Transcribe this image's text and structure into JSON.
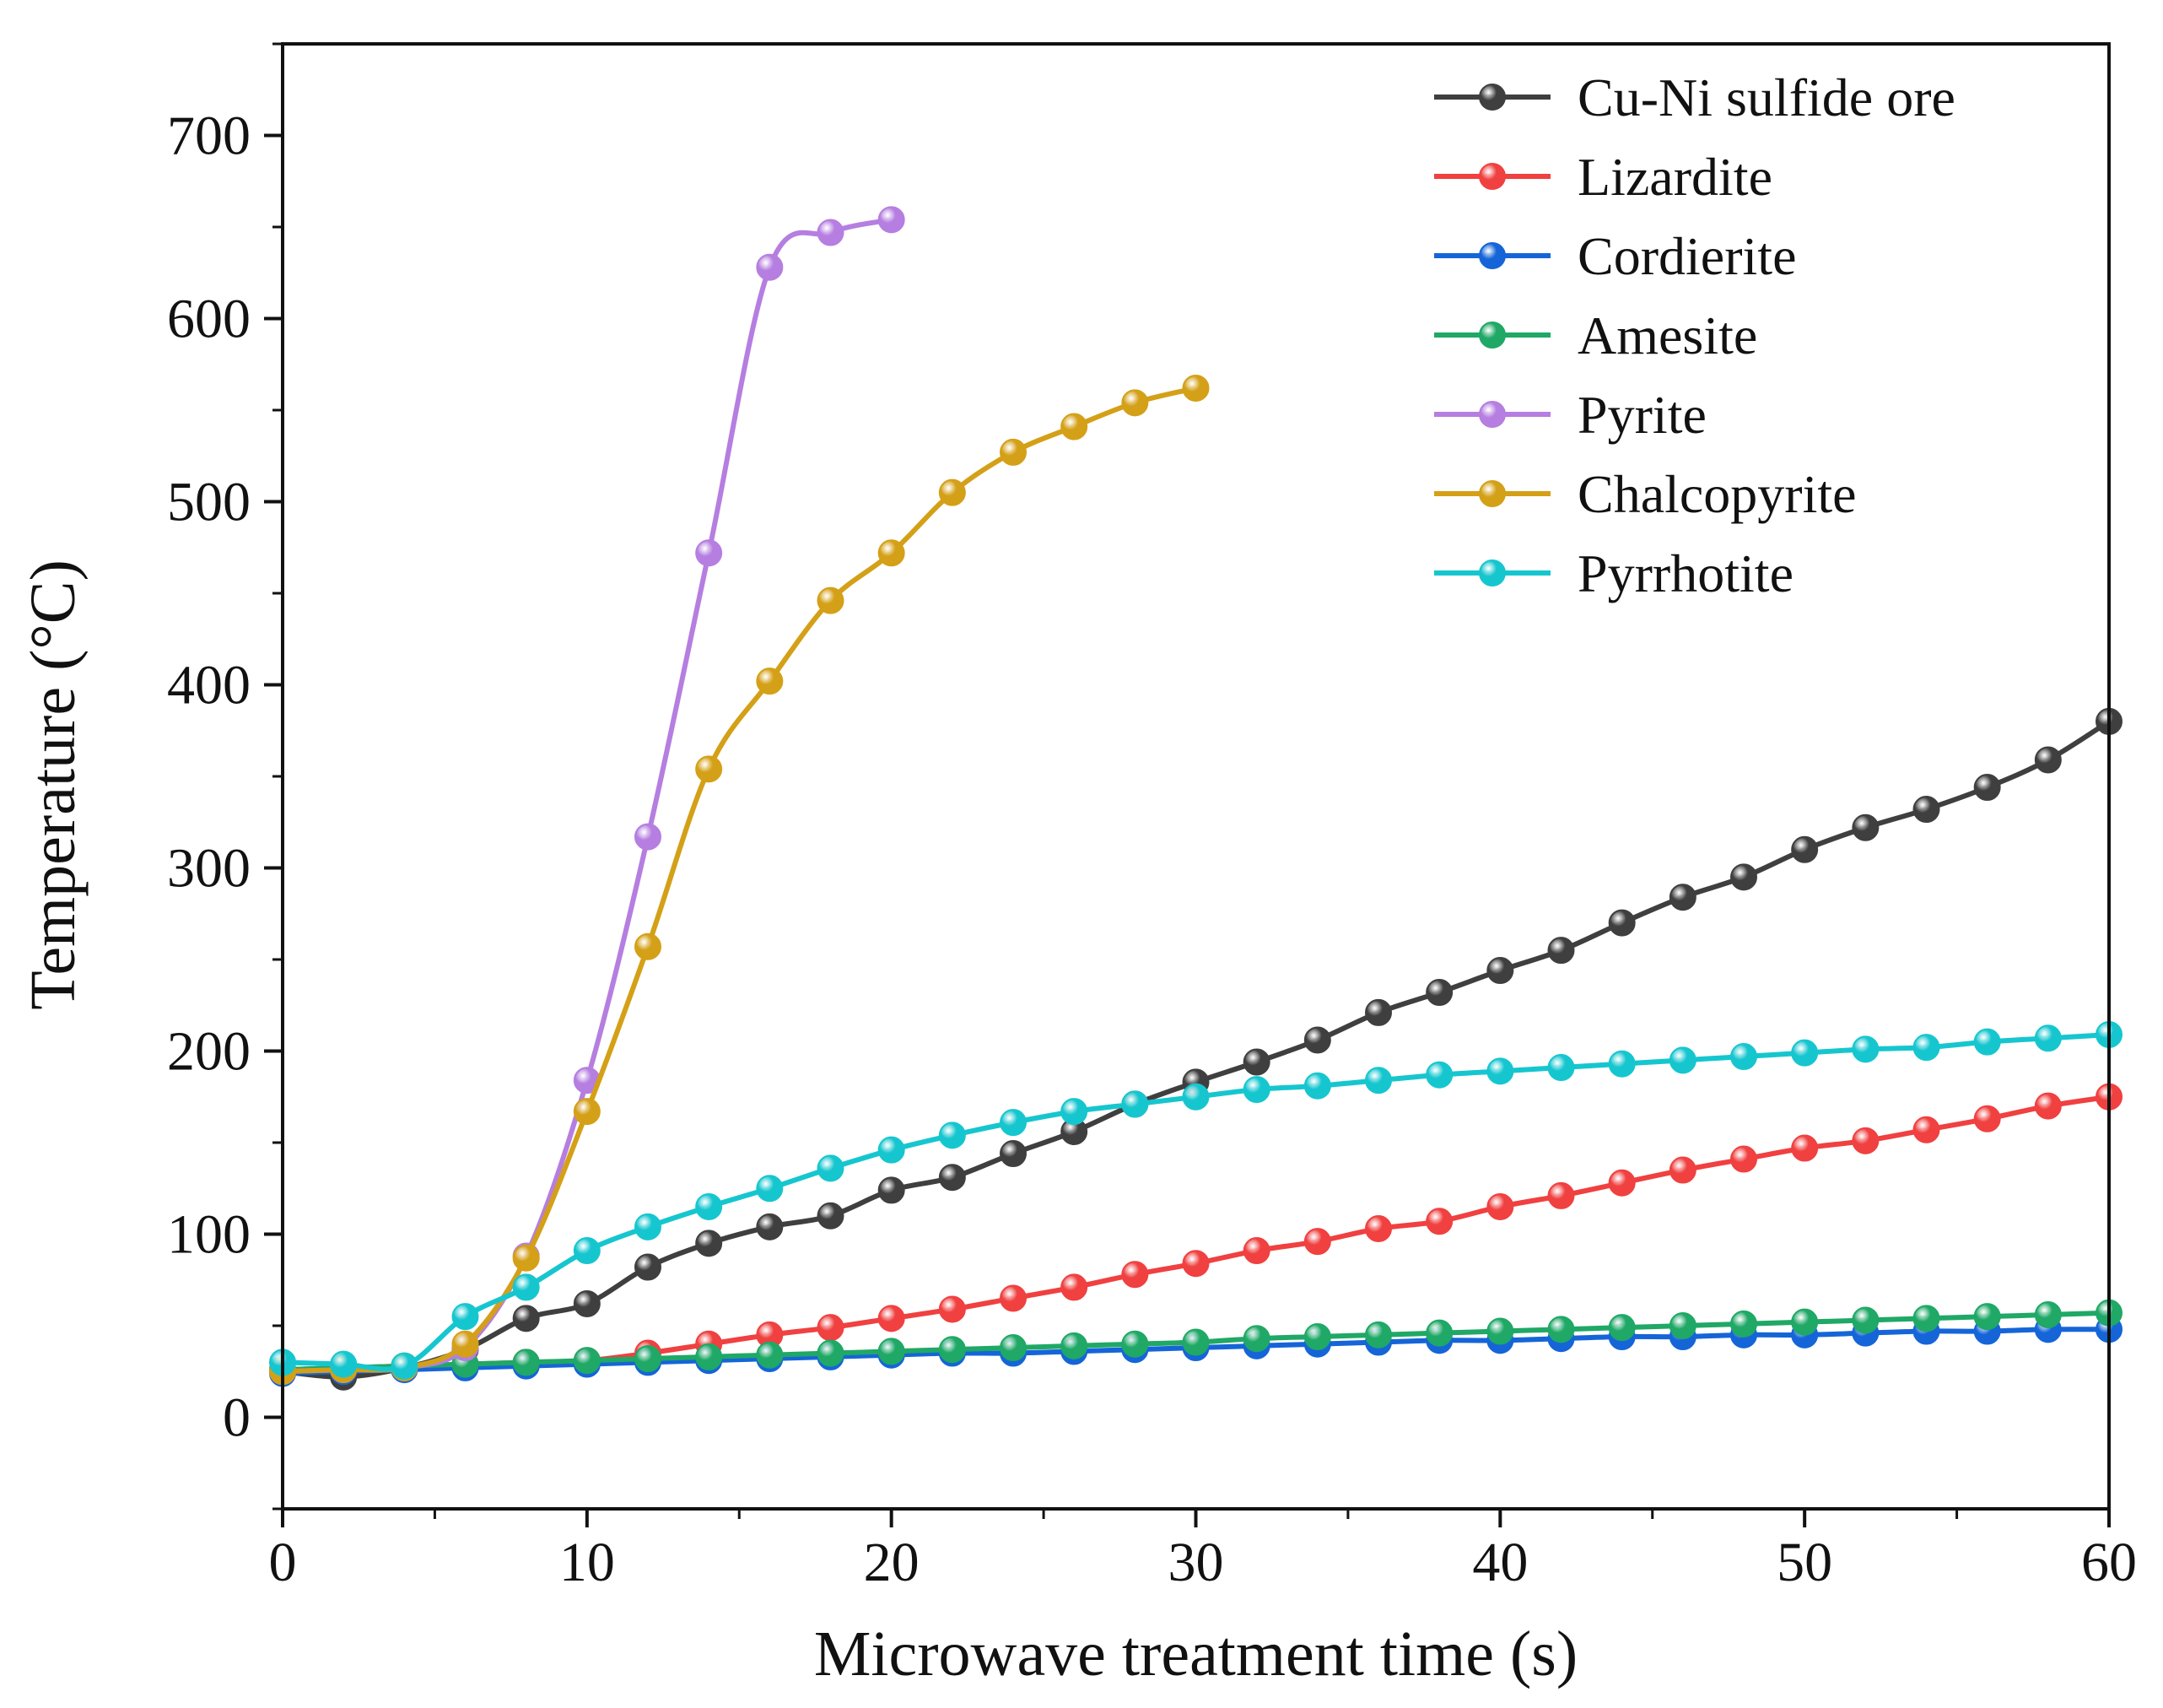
{
  "chart_data": {
    "type": "line",
    "title": "",
    "xlabel": "Microwave treatment time (s)",
    "ylabel": "Temperature (°C)",
    "xlim": [
      0,
      60
    ],
    "ylim": [
      -50,
      750
    ],
    "xticks": [
      0,
      10,
      20,
      30,
      40,
      50,
      60
    ],
    "yticks": [
      0,
      100,
      200,
      300,
      400,
      500,
      600,
      700
    ],
    "legend_position": "top-right",
    "series": [
      {
        "name": "Cu-Ni sulfide ore",
        "color": "#3f3f3f",
        "x": [
          0,
          2,
          4,
          6,
          8,
          10,
          12,
          14,
          16,
          18,
          20,
          22,
          24,
          26,
          28,
          30,
          32,
          34,
          36,
          38,
          40,
          42,
          44,
          46,
          48,
          50,
          52,
          54,
          56,
          58,
          60
        ],
        "y": [
          25,
          22,
          27,
          37,
          54,
          62,
          82,
          95,
          104,
          110,
          124,
          131,
          144,
          156,
          171,
          183,
          194,
          206,
          221,
          232,
          244,
          255,
          270,
          284,
          295,
          310,
          322,
          332,
          344,
          359,
          380
        ]
      },
      {
        "name": "Lizardite",
        "color": "#f04040",
        "x": [
          0,
          2,
          4,
          6,
          8,
          10,
          12,
          14,
          16,
          18,
          20,
          22,
          24,
          26,
          28,
          30,
          32,
          34,
          36,
          38,
          40,
          42,
          44,
          46,
          48,
          50,
          52,
          54,
          56,
          58,
          60
        ],
        "y": [
          26,
          27,
          28,
          29,
          30,
          31,
          35,
          40,
          45,
          49,
          54,
          59,
          65,
          71,
          78,
          84,
          91,
          96,
          103,
          107,
          115,
          121,
          128,
          135,
          141,
          147,
          151,
          157,
          163,
          170,
          175
        ]
      },
      {
        "name": "Cordierite",
        "color": "#1565d8",
        "x": [
          0,
          2,
          4,
          6,
          8,
          10,
          12,
          14,
          16,
          18,
          20,
          22,
          24,
          26,
          28,
          30,
          32,
          34,
          36,
          38,
          40,
          42,
          44,
          46,
          48,
          50,
          52,
          54,
          56,
          58,
          60
        ],
        "y": [
          24,
          25,
          26,
          27,
          28,
          29,
          30,
          31,
          32,
          33,
          34,
          35,
          35,
          36,
          37,
          38,
          39,
          40,
          41,
          42,
          42,
          43,
          44,
          44,
          45,
          45,
          46,
          47,
          47,
          48,
          48
        ]
      },
      {
        "name": "Amesite",
        "color": "#1fa866",
        "x": [
          0,
          2,
          4,
          6,
          8,
          10,
          12,
          14,
          16,
          18,
          20,
          22,
          24,
          26,
          28,
          30,
          32,
          34,
          36,
          38,
          40,
          42,
          44,
          46,
          48,
          50,
          52,
          54,
          56,
          58,
          60
        ],
        "y": [
          26,
          27,
          28,
          29,
          30,
          31,
          32,
          33,
          34,
          35,
          36,
          37,
          38,
          39,
          40,
          41,
          43,
          44,
          45,
          46,
          47,
          48,
          49,
          50,
          51,
          52,
          53,
          54,
          55,
          56,
          57
        ]
      },
      {
        "name": "Pyrite",
        "color": "#b57ee0",
        "x": [
          0,
          2,
          4,
          6,
          8,
          10,
          12,
          14,
          16,
          18,
          20
        ],
        "y": [
          25,
          26,
          27,
          38,
          88,
          184,
          317,
          472,
          628,
          647,
          654
        ]
      },
      {
        "name": "Chalcopyrite",
        "color": "#d4a017",
        "x": [
          0,
          2,
          4,
          6,
          8,
          10,
          12,
          14,
          16,
          18,
          20,
          22,
          24,
          26,
          28,
          30
        ],
        "y": [
          25,
          26,
          27,
          40,
          87,
          167,
          257,
          354,
          402,
          446,
          472,
          505,
          527,
          541,
          554,
          562
        ]
      },
      {
        "name": "Pyrrhotite",
        "color": "#16c6cf",
        "x": [
          0,
          2,
          4,
          6,
          8,
          10,
          12,
          14,
          16,
          18,
          20,
          22,
          24,
          26,
          28,
          30,
          32,
          34,
          36,
          38,
          40,
          42,
          44,
          46,
          48,
          50,
          52,
          54,
          56,
          58,
          60
        ],
        "y": [
          30,
          29,
          28,
          55,
          71,
          91,
          104,
          115,
          125,
          136,
          146,
          154,
          161,
          167,
          171,
          175,
          179,
          181,
          184,
          187,
          189,
          191,
          193,
          195,
          197,
          199,
          201,
          202,
          205,
          207,
          209
        ]
      }
    ]
  }
}
